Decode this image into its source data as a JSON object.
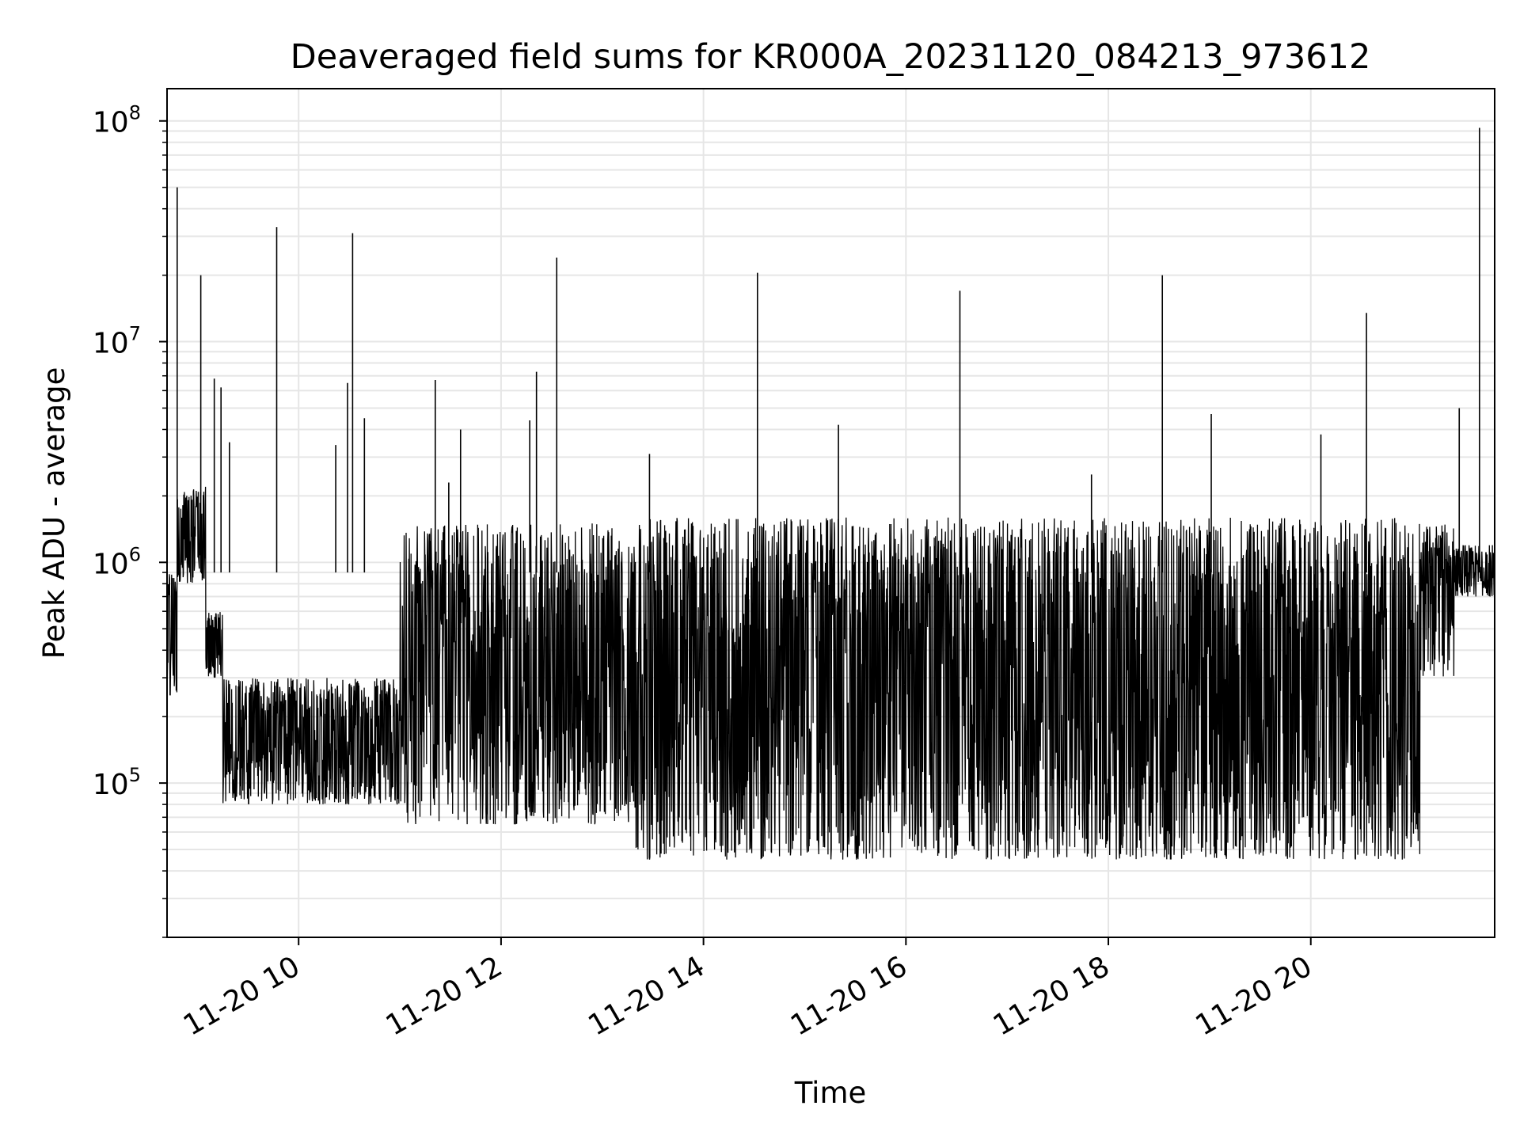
{
  "chart_data": {
    "type": "line",
    "title": "Deaveraged field sums for KR000A_20231120_084213_973612",
    "xlabel": "Time",
    "ylabel": "Peak ADU - average",
    "y_scale": "log",
    "ylim": [
      20000,
      140000000
    ],
    "xlim": [
      "2023-11-20 08:42",
      "2023-11-20 21:49"
    ],
    "grid": true,
    "line_color": "#000000",
    "grid_color": "#e6e6e6",
    "x_ticks": [
      {
        "x": "2023-11-20 10:00",
        "label": "11-20 10"
      },
      {
        "x": "2023-11-20 12:00",
        "label": "11-20 12"
      },
      {
        "x": "2023-11-20 14:00",
        "label": "11-20 14"
      },
      {
        "x": "2023-11-20 16:00",
        "label": "11-20 16"
      },
      {
        "x": "2023-11-20 18:00",
        "label": "11-20 18"
      },
      {
        "x": "2023-11-20 20:00",
        "label": "11-20 20"
      }
    ],
    "y_ticks": [
      {
        "value": 100000,
        "base": "10",
        "exp": "5"
      },
      {
        "value": 1000000,
        "base": "10",
        "exp": "6"
      },
      {
        "value": 10000000,
        "base": "10",
        "exp": "7"
      },
      {
        "value": 100000000,
        "base": "10",
        "exp": "8"
      }
    ],
    "series": [
      {
        "regimes": [
          {
            "start": "2023-11-20 08:42",
            "end": "2023-11-20 08:48",
            "low": 250000,
            "high": 900000
          },
          {
            "start": "2023-11-20 08:48",
            "end": "2023-11-20 09:05",
            "low": 800000,
            "high": 2200000
          },
          {
            "start": "2023-11-20 09:05",
            "end": "2023-11-20 09:15",
            "low": 300000,
            "high": 600000
          },
          {
            "start": "2023-11-20 09:15",
            "end": "2023-11-20 11:00",
            "low": 80000,
            "high": 300000
          },
          {
            "start": "2023-11-20 11:00",
            "end": "2023-11-20 13:20",
            "low": 65000,
            "high": 1500000
          },
          {
            "start": "2023-11-20 13:20",
            "end": "2023-11-20 21:05",
            "low": 45000,
            "high": 1600000
          },
          {
            "start": "2023-11-20 21:05",
            "end": "2023-11-20 21:25",
            "low": 300000,
            "high": 1500000
          },
          {
            "start": "2023-11-20 21:25",
            "end": "2023-11-20 21:49",
            "low": 700000,
            "high": 1200000
          }
        ],
        "spikes": [
          {
            "x": "2023-11-20 08:48",
            "value": 50000000
          },
          {
            "x": "2023-11-20 09:02",
            "value": 20000000
          },
          {
            "x": "2023-11-20 09:10",
            "value": 6800000
          },
          {
            "x": "2023-11-20 09:14",
            "value": 6200000
          },
          {
            "x": "2023-11-20 09:19",
            "value": 3500000
          },
          {
            "x": "2023-11-20 09:47",
            "value": 33000000
          },
          {
            "x": "2023-11-20 10:22",
            "value": 3400000
          },
          {
            "x": "2023-11-20 10:29",
            "value": 6500000
          },
          {
            "x": "2023-11-20 10:32",
            "value": 31000000
          },
          {
            "x": "2023-11-20 10:39",
            "value": 4500000
          },
          {
            "x": "2023-11-20 11:21",
            "value": 6700000
          },
          {
            "x": "2023-11-20 11:29",
            "value": 2300000
          },
          {
            "x": "2023-11-20 11:36",
            "value": 4000000
          },
          {
            "x": "2023-11-20 12:17",
            "value": 4400000
          },
          {
            "x": "2023-11-20 12:21",
            "value": 7300000
          },
          {
            "x": "2023-11-20 12:33",
            "value": 24000000
          },
          {
            "x": "2023-11-20 13:28",
            "value": 3100000
          },
          {
            "x": "2023-11-20 14:32",
            "value": 20500000
          },
          {
            "x": "2023-11-20 15:20",
            "value": 4200000
          },
          {
            "x": "2023-11-20 16:32",
            "value": 17000000
          },
          {
            "x": "2023-11-20 17:50",
            "value": 2500000
          },
          {
            "x": "2023-11-20 18:32",
            "value": 20000000
          },
          {
            "x": "2023-11-20 19:01",
            "value": 4700000
          },
          {
            "x": "2023-11-20 20:06",
            "value": 3800000
          },
          {
            "x": "2023-11-20 20:33",
            "value": 13500000
          },
          {
            "x": "2023-11-20 21:28",
            "value": 5000000
          },
          {
            "x": "2023-11-20 21:40",
            "value": 93000000
          }
        ]
      }
    ]
  }
}
